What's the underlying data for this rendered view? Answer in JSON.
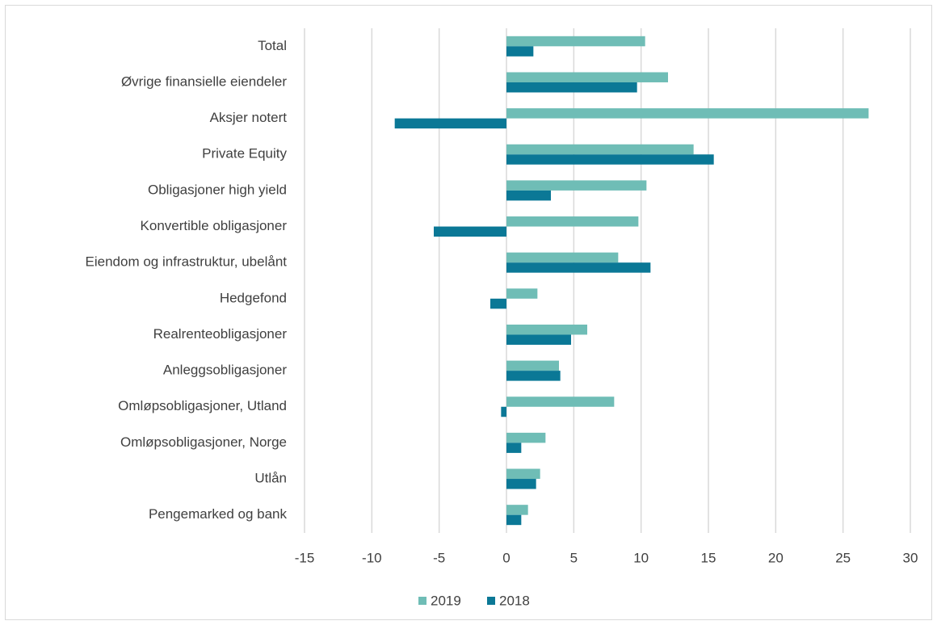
{
  "chart_data": {
    "type": "hbar",
    "categories": [
      "Total",
      "Øvrige finansielle eiendeler",
      "Aksjer notert",
      "Private Equity",
      "Obligasjoner high yield",
      "Konvertible obligasjoner",
      "Eiendom og infrastruktur, ubelånt",
      "Hedgefond",
      "Realrenteobligasjoner",
      "Anleggsobligasjoner",
      "Omløpsobligasjoner, Utland",
      "Omløpsobligasjoner, Norge",
      "Utlån",
      "Pengemarked og bank"
    ],
    "series": [
      {
        "name": "2019",
        "color": "#6fbdb6",
        "values": [
          10.3,
          12.0,
          26.9,
          13.9,
          10.4,
          9.8,
          8.3,
          2.3,
          6.0,
          3.9,
          8.0,
          2.9,
          2.5,
          1.6
        ]
      },
      {
        "name": "2018",
        "color": "#0b7896",
        "values": [
          2.0,
          9.7,
          -8.3,
          15.4,
          3.3,
          -5.4,
          10.7,
          -1.2,
          4.8,
          4.0,
          -0.4,
          1.1,
          2.2,
          1.1
        ]
      }
    ],
    "xlim": [
      -15,
      30
    ],
    "xticks": [
      -15,
      -10,
      -5,
      0,
      5,
      10,
      15,
      20,
      25,
      30
    ],
    "grid": true,
    "legend": "bottom"
  }
}
